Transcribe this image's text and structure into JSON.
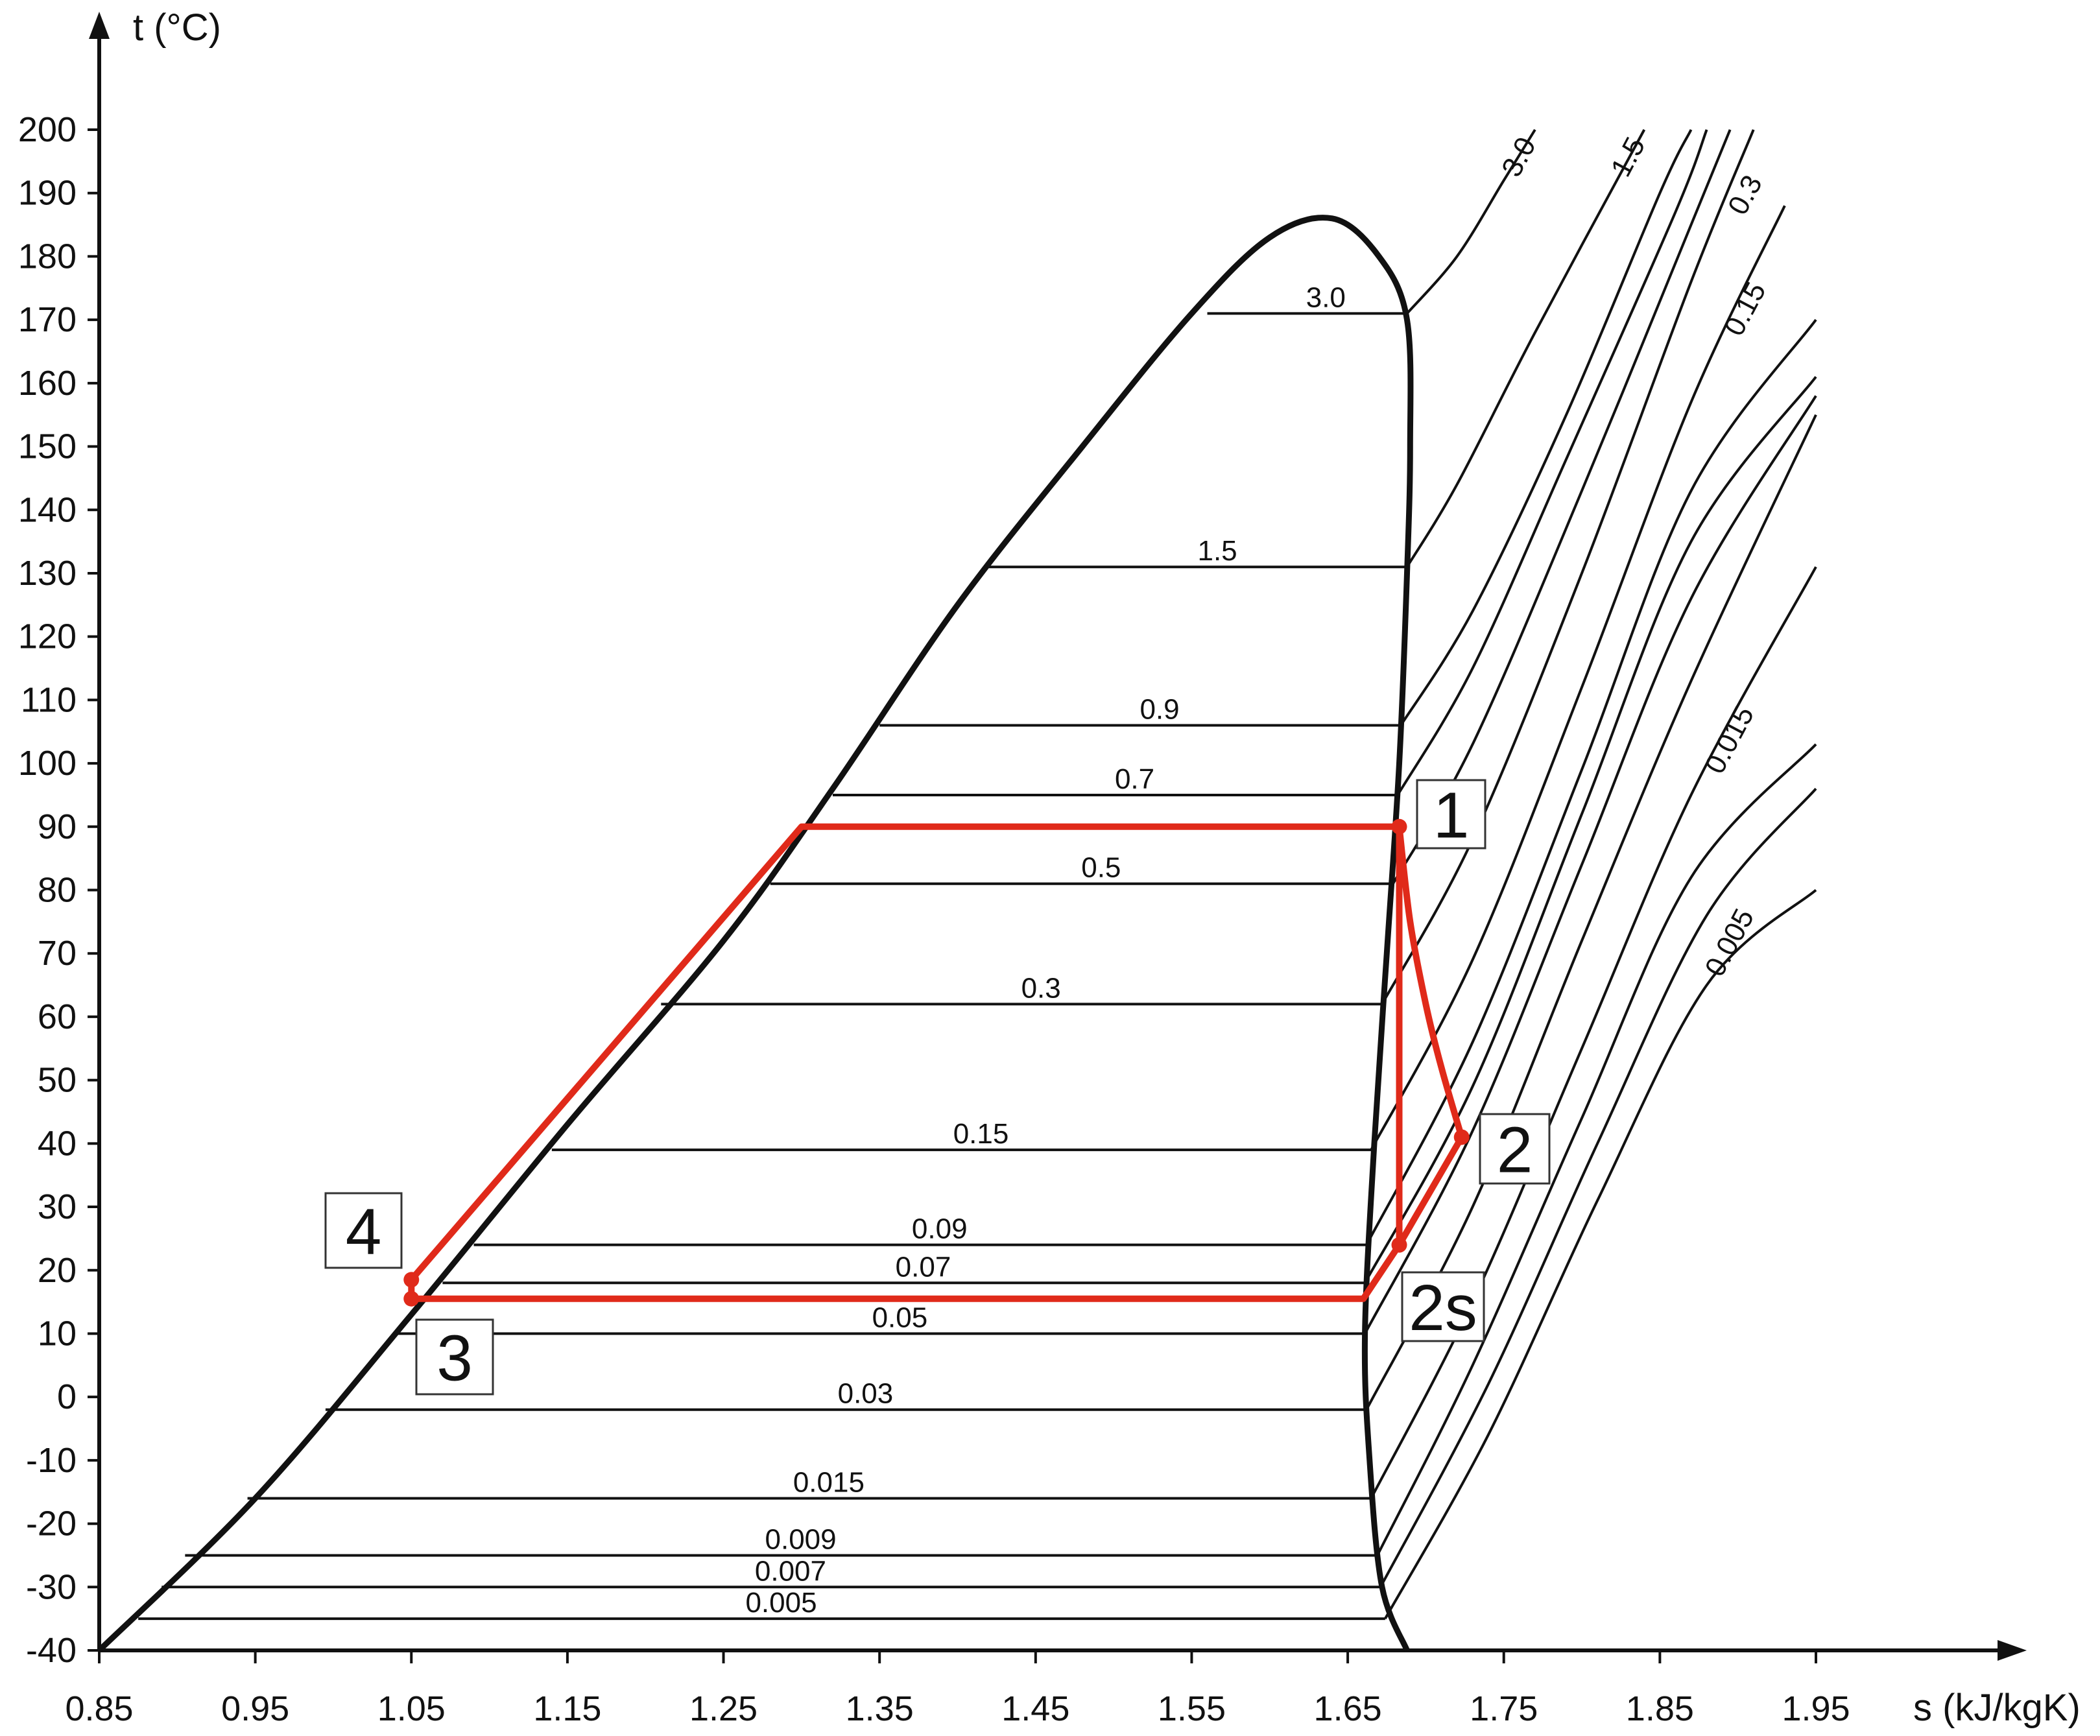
{
  "chart_data": {
    "type": "line",
    "title": "",
    "xlabel": "s (kJ/kgK)",
    "ylabel": "t (°C)",
    "xlim": [
      0.85,
      2.0
    ],
    "ylim": [
      -40,
      205
    ],
    "x_ticks": [
      "0.85",
      "0.95",
      "1.05",
      "1.15",
      "1.25",
      "1.35",
      "1.45",
      "1.55",
      "1.65",
      "1.75",
      "1.85",
      "1.95"
    ],
    "y_ticks": [
      "200",
      "190",
      "180",
      "170",
      "160",
      "150",
      "140",
      "130",
      "120",
      "110",
      "100",
      "90",
      "80",
      "70",
      "60",
      "50",
      "40",
      "30",
      "20",
      "10",
      "0",
      "-10",
      "-20",
      "-30",
      "-40"
    ],
    "grid": false,
    "colors": {
      "curves": "#111111",
      "cycle": "#e02a1a"
    },
    "saturation_dome": [
      [
        0.85,
        -40
      ],
      [
        0.95,
        -16
      ],
      [
        1.05,
        13
      ],
      [
        1.15,
        43
      ],
      [
        1.25,
        72
      ],
      [
        1.32,
        96
      ],
      [
        1.4,
        125
      ],
      [
        1.48,
        150
      ],
      [
        1.55,
        171
      ],
      [
        1.6,
        183
      ],
      [
        1.64,
        186
      ],
      [
        1.67,
        180
      ],
      [
        1.688,
        170
      ],
      [
        1.69,
        150
      ],
      [
        1.688,
        130
      ],
      [
        1.683,
        100
      ],
      [
        1.675,
        70
      ],
      [
        1.667,
        40
      ],
      [
        1.661,
        10
      ],
      [
        1.664,
        -10
      ],
      [
        1.672,
        -30
      ],
      [
        1.688,
        -40
      ]
    ],
    "isobars": [
      {
        "p": "3.0",
        "t": 171,
        "s_liq": 1.56,
        "s_vap": 1.687
      },
      {
        "p": "1.5",
        "t": 131,
        "s_liq": 1.42,
        "s_vap": 1.688
      },
      {
        "p": "0.9",
        "t": 106,
        "s_liq": 1.35,
        "s_vap": 1.684
      },
      {
        "p": "0.7",
        "t": 95,
        "s_liq": 1.32,
        "s_vap": 1.682
      },
      {
        "p": "0.5",
        "t": 81,
        "s_liq": 1.28,
        "s_vap": 1.679
      },
      {
        "p": "0.3",
        "t": 62,
        "s_liq": 1.21,
        "s_vap": 1.672
      },
      {
        "p": "0.15",
        "t": 39,
        "s_liq": 1.14,
        "s_vap": 1.665
      },
      {
        "p": "0.09",
        "t": 24,
        "s_liq": 1.09,
        "s_vap": 1.662
      },
      {
        "p": "0.07",
        "t": 18,
        "s_liq": 1.07,
        "s_vap": 1.661
      },
      {
        "p": "0.05",
        "t": 10,
        "s_liq": 1.04,
        "s_vap": 1.661
      },
      {
        "p": "0.03",
        "t": -2,
        "s_liq": 0.995,
        "s_vap": 1.662
      },
      {
        "p": "0.015",
        "t": -16,
        "s_liq": 0.945,
        "s_vap": 1.665
      },
      {
        "p": "0.009",
        "t": -25,
        "s_liq": 0.905,
        "s_vap": 1.669
      },
      {
        "p": "0.007",
        "t": -30,
        "s_liq": 0.89,
        "s_vap": 1.671
      },
      {
        "p": "0.005",
        "t": -35,
        "s_liq": 0.875,
        "s_vap": 1.674
      }
    ],
    "superheated_curves": [
      {
        "p": "3.0",
        "points": [
          [
            1.688,
            171
          ],
          [
            1.72,
            180
          ],
          [
            1.75,
            192
          ],
          [
            1.77,
            200
          ]
        ]
      },
      {
        "p": "1.5",
        "points": [
          [
            1.688,
            131
          ],
          [
            1.72,
            144
          ],
          [
            1.77,
            168
          ],
          [
            1.84,
            200
          ]
        ]
      },
      {
        "p": "0.9",
        "points": [
          [
            1.684,
            106
          ],
          [
            1.73,
            124
          ],
          [
            1.79,
            155
          ],
          [
            1.85,
            190
          ],
          [
            1.87,
            200
          ]
        ]
      },
      {
        "p": "0.7",
        "points": [
          [
            1.682,
            95
          ],
          [
            1.73,
            115
          ],
          [
            1.79,
            148
          ],
          [
            1.86,
            187
          ],
          [
            1.88,
            200
          ]
        ]
      },
      {
        "p": "0.5",
        "points": [
          [
            1.679,
            81
          ],
          [
            1.73,
            103
          ],
          [
            1.8,
            143
          ],
          [
            1.87,
            185
          ],
          [
            1.895,
            200
          ]
        ]
      },
      {
        "p": "0.3",
        "points": [
          [
            1.672,
            62
          ],
          [
            1.73,
            88
          ],
          [
            1.8,
            130
          ],
          [
            1.87,
            176
          ],
          [
            1.91,
            200
          ]
        ]
      },
      {
        "p": "0.15",
        "points": [
          [
            1.665,
            39
          ],
          [
            1.73,
            69
          ],
          [
            1.8,
            112
          ],
          [
            1.87,
            157
          ],
          [
            1.93,
            188
          ]
        ]
      },
      {
        "p": "0.09",
        "points": [
          [
            1.662,
            24
          ],
          [
            1.73,
            56
          ],
          [
            1.8,
            99
          ],
          [
            1.87,
            143
          ],
          [
            1.95,
            170
          ]
        ]
      },
      {
        "p": "0.07",
        "points": [
          [
            1.661,
            18
          ],
          [
            1.73,
            49
          ],
          [
            1.8,
            92
          ],
          [
            1.87,
            135
          ],
          [
            1.95,
            161
          ]
        ]
      },
      {
        "p": "0.05",
        "points": [
          [
            1.661,
            10
          ],
          [
            1.73,
            42
          ],
          [
            1.8,
            84
          ],
          [
            1.87,
            126
          ],
          [
            1.95,
            158
          ]
        ]
      },
      {
        "p": "0.03",
        "points": [
          [
            1.662,
            -2
          ],
          [
            1.73,
            30
          ],
          [
            1.8,
            72
          ],
          [
            1.87,
            113
          ],
          [
            1.95,
            155
          ]
        ]
      },
      {
        "p": "0.015",
        "points": [
          [
            1.665,
            -16
          ],
          [
            1.73,
            15
          ],
          [
            1.8,
            55
          ],
          [
            1.87,
            95
          ],
          [
            1.95,
            131
          ]
        ]
      },
      {
        "p": "0.009",
        "points": [
          [
            1.669,
            -25
          ],
          [
            1.73,
            5
          ],
          [
            1.8,
            44
          ],
          [
            1.87,
            82
          ],
          [
            1.95,
            103
          ]
        ]
      },
      {
        "p": "0.007",
        "points": [
          [
            1.671,
            -30
          ],
          [
            1.74,
            2
          ],
          [
            1.81,
            40
          ],
          [
            1.88,
            76
          ],
          [
            1.95,
            96
          ]
        ]
      },
      {
        "p": "0.005",
        "points": [
          [
            1.674,
            -35
          ],
          [
            1.74,
            -6
          ],
          [
            1.81,
            31
          ],
          [
            1.88,
            65
          ],
          [
            1.95,
            80
          ]
        ]
      }
    ],
    "superheat_labels": [
      {
        "text": "3.0",
        "s": 1.765,
        "t": 195
      },
      {
        "text": "1.5",
        "s": 1.835,
        "t": 195
      },
      {
        "text": "0.3",
        "s": 1.91,
        "t": 189
      },
      {
        "text": "0.15",
        "s": 1.91,
        "t": 171
      },
      {
        "text": "0.015",
        "s": 1.9,
        "t": 103
      },
      {
        "text": "0.005",
        "s": 1.9,
        "t": 71
      }
    ],
    "cycle": {
      "points": [
        {
          "label": "1",
          "s": 1.683,
          "t": 90
        },
        {
          "label": "2",
          "s": 1.723,
          "t": 41
        },
        {
          "label": "2s",
          "s": 1.683,
          "t": 24
        },
        {
          "label": "3",
          "s": 1.05,
          "t": 15.5
        },
        {
          "label": "4",
          "s": 1.05,
          "t": 18.5
        }
      ],
      "path_evaporator_and_pump": [
        [
          1.683,
          90
        ],
        [
          1.3,
          90
        ],
        [
          1.05,
          18.5
        ],
        [
          1.05,
          15.5
        ],
        [
          1.66,
          15.5
        ],
        [
          1.683,
          24
        ],
        [
          1.683,
          90
        ]
      ],
      "path_real_expansion": [
        [
          1.683,
          90
        ],
        [
          1.69,
          75
        ],
        [
          1.7,
          62
        ],
        [
          1.71,
          52
        ],
        [
          1.723,
          41
        ],
        [
          1.683,
          24
        ]
      ]
    }
  }
}
